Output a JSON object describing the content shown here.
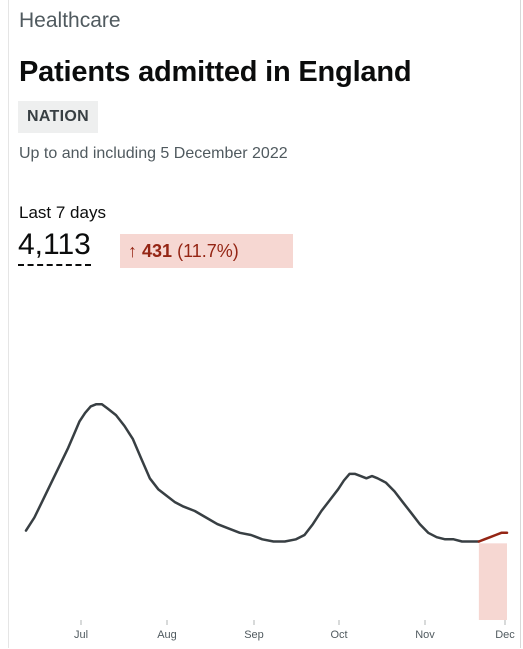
{
  "card": {
    "category": "Healthcare",
    "title": "Patients admitted in England",
    "tag": "NATION",
    "updated": "Up to and including 5 December 2022"
  },
  "headline": {
    "period_label": "Last 7 days",
    "value": "4,113",
    "change": {
      "arrow": "↑",
      "amount": "431",
      "percent": "(11.7%)",
      "direction": "up",
      "color": "#942514",
      "background": "#f6d7d2"
    }
  },
  "chart_data": {
    "type": "line",
    "x_ticks": [
      "Jul",
      "Aug",
      "Sep",
      "Oct",
      "Nov",
      "Dec"
    ],
    "series": [
      {
        "color": "#383f43",
        "points": [
          [
            0,
            0.41
          ],
          [
            3,
            0.47
          ],
          [
            6,
            0.55
          ],
          [
            9,
            0.63
          ],
          [
            12,
            0.71
          ],
          [
            15,
            0.79
          ],
          [
            17,
            0.85
          ],
          [
            19,
            0.91
          ],
          [
            21,
            0.95
          ],
          [
            23,
            0.98
          ],
          [
            25,
            0.99
          ],
          [
            27,
            0.99
          ],
          [
            29,
            0.97
          ],
          [
            32,
            0.94
          ],
          [
            35,
            0.89
          ],
          [
            38,
            0.83
          ],
          [
            41,
            0.74
          ],
          [
            44,
            0.65
          ],
          [
            47,
            0.6
          ],
          [
            50,
            0.57
          ],
          [
            53,
            0.54
          ],
          [
            56,
            0.52
          ],
          [
            60,
            0.5
          ],
          [
            64,
            0.47
          ],
          [
            68,
            0.44
          ],
          [
            72,
            0.42
          ],
          [
            76,
            0.4
          ],
          [
            80,
            0.39
          ],
          [
            84,
            0.37
          ],
          [
            88,
            0.36
          ],
          [
            92,
            0.36
          ],
          [
            96,
            0.37
          ],
          [
            99,
            0.39
          ],
          [
            102,
            0.44
          ],
          [
            105,
            0.5
          ],
          [
            108,
            0.55
          ],
          [
            111,
            0.6
          ],
          [
            113,
            0.64
          ],
          [
            115,
            0.67
          ],
          [
            117,
            0.67
          ],
          [
            119,
            0.66
          ],
          [
            121,
            0.65
          ],
          [
            123,
            0.66
          ],
          [
            125,
            0.65
          ],
          [
            128,
            0.63
          ],
          [
            131,
            0.59
          ],
          [
            134,
            0.54
          ],
          [
            137,
            0.49
          ],
          [
            140,
            0.44
          ],
          [
            143,
            0.4
          ],
          [
            146,
            0.38
          ],
          [
            149,
            0.37
          ],
          [
            152,
            0.37
          ],
          [
            155,
            0.36
          ],
          [
            158,
            0.36
          ],
          [
            161,
            0.36
          ]
        ]
      },
      {
        "color": "#942514",
        "points": [
          [
            161,
            0.36
          ],
          [
            163,
            0.37
          ],
          [
            165,
            0.38
          ],
          [
            167,
            0.39
          ],
          [
            169,
            0.4
          ],
          [
            171,
            0.4
          ]
        ]
      }
    ],
    "highlight": {
      "from": 161,
      "to": 171,
      "color": "#f6d7d2"
    }
  }
}
